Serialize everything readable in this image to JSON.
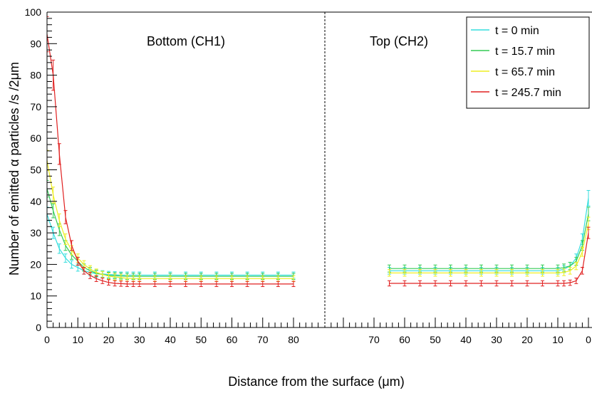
{
  "chart_data": {
    "type": "line",
    "title": "",
    "xlabel": "Distance from the surface (μm)",
    "ylabel": "Number of emitted α particles /s /2μm",
    "ylim": [
      0,
      100
    ],
    "y_ticks": [
      0,
      10,
      20,
      30,
      40,
      50,
      60,
      70,
      80,
      90,
      100
    ],
    "grid": false,
    "legend_position": "top-right",
    "panels": [
      {
        "label": "Bottom (CH1)",
        "xlim": [
          0,
          90
        ],
        "x_ticks": [
          0,
          10,
          20,
          30,
          40,
          50,
          60,
          70,
          80
        ],
        "x_direction": "increasing"
      },
      {
        "label": "Top (CH2)",
        "xlim": [
          0,
          90
        ],
        "x_ticks": [
          70,
          60,
          50,
          40,
          30,
          20,
          10,
          0
        ],
        "x_tick_labels": [
          "70",
          "60",
          "50",
          "40",
          "30",
          "20",
          "10",
          "0"
        ],
        "x_direction": "decreasing"
      }
    ],
    "series": [
      {
        "name": "t = 0 min",
        "color": "#33dede",
        "bottom_x": [
          0,
          2,
          4,
          6,
          8,
          10,
          12,
          14,
          16,
          18,
          20,
          22,
          24,
          26,
          28,
          30,
          35,
          40,
          45,
          50,
          55,
          60,
          65,
          70,
          75,
          80
        ],
        "bottom_y": [
          36,
          30,
          25,
          22,
          20,
          19,
          18,
          17.5,
          17,
          17,
          16.8,
          16.7,
          16.6,
          16.6,
          16.6,
          16.6,
          16.6,
          16.6,
          16.6,
          16.6,
          16.6,
          16.6,
          16.6,
          16.6,
          16.6,
          16.6
        ],
        "top_x": [
          65,
          60,
          55,
          50,
          45,
          40,
          35,
          30,
          25,
          20,
          15,
          10,
          8,
          6,
          4,
          2,
          0
        ],
        "top_y": [
          18,
          18,
          18,
          18,
          18,
          18,
          18,
          18,
          18,
          18,
          18,
          18,
          18.5,
          19.5,
          22,
          28,
          41
        ]
      },
      {
        "name": "t = 15.7 min",
        "color": "#33cc55",
        "bottom_x": [
          0,
          2,
          4,
          6,
          8,
          10,
          12,
          14,
          16,
          18,
          20,
          22,
          24,
          26,
          28,
          30,
          35,
          40,
          45,
          50,
          55,
          60,
          65,
          70,
          75,
          80
        ],
        "bottom_y": [
          44,
          37,
          31,
          26,
          23,
          21,
          19,
          18,
          17.2,
          16.8,
          16.5,
          16.4,
          16.3,
          16.2,
          16.2,
          16.2,
          16.2,
          16.2,
          16.2,
          16.2,
          16.2,
          16.2,
          16.2,
          16.2,
          16.2,
          16.2
        ],
        "top_x": [
          65,
          60,
          55,
          50,
          45,
          40,
          35,
          30,
          25,
          20,
          15,
          10,
          8,
          6,
          4,
          2,
          0
        ],
        "top_y": [
          18.7,
          18.7,
          18.7,
          18.7,
          18.7,
          18.7,
          18.7,
          18.7,
          18.7,
          18.7,
          18.7,
          18.7,
          19,
          19.5,
          21,
          26,
          36
        ]
      },
      {
        "name": "t = 65.7 min",
        "color": "#eeee22",
        "bottom_x": [
          0,
          2,
          4,
          6,
          8,
          10,
          12,
          14,
          16,
          18,
          20,
          22,
          24,
          26,
          28,
          30,
          35,
          40,
          45,
          50,
          55,
          60,
          65,
          70,
          75,
          80
        ],
        "bottom_y": [
          53,
          42,
          34,
          28,
          24.5,
          22,
          20,
          18.5,
          17.5,
          16.8,
          16.3,
          16,
          15.8,
          15.6,
          15.5,
          15.5,
          15.5,
          15.5,
          15.5,
          15.5,
          15.5,
          15.5,
          15.5,
          15.5,
          15.5,
          15.5
        ],
        "top_x": [
          65,
          60,
          55,
          50,
          45,
          40,
          35,
          30,
          25,
          20,
          15,
          10,
          8,
          6,
          4,
          2,
          0
        ],
        "top_y": [
          17.3,
          17.3,
          17.3,
          17.3,
          17.3,
          17.3,
          17.3,
          17.3,
          17.3,
          17.3,
          17.3,
          17.3,
          17.5,
          18,
          19.5,
          24,
          33
        ]
      },
      {
        "name": "t = 245.7 min",
        "color": "#e02020",
        "bottom_x": [
          0,
          2,
          4,
          6,
          8,
          10,
          12,
          14,
          16,
          18,
          20,
          22,
          24,
          26,
          28,
          30,
          35,
          40,
          45,
          50,
          55,
          60,
          65,
          70,
          75,
          80
        ],
        "bottom_y": [
          93,
          80,
          55,
          35,
          26,
          21,
          18,
          16.5,
          15.5,
          14.8,
          14.3,
          14,
          13.9,
          13.8,
          13.8,
          13.8,
          13.8,
          13.8,
          13.8,
          13.8,
          13.8,
          13.8,
          13.8,
          13.8,
          13.8,
          13.8
        ],
        "top_x": [
          65,
          60,
          55,
          50,
          45,
          40,
          35,
          30,
          25,
          20,
          15,
          10,
          8,
          6,
          4,
          2,
          0
        ],
        "top_y": [
          14,
          14,
          14,
          14,
          14,
          14,
          14,
          14,
          14,
          14,
          14,
          14,
          14,
          14.2,
          14.8,
          18,
          30
        ]
      }
    ]
  }
}
